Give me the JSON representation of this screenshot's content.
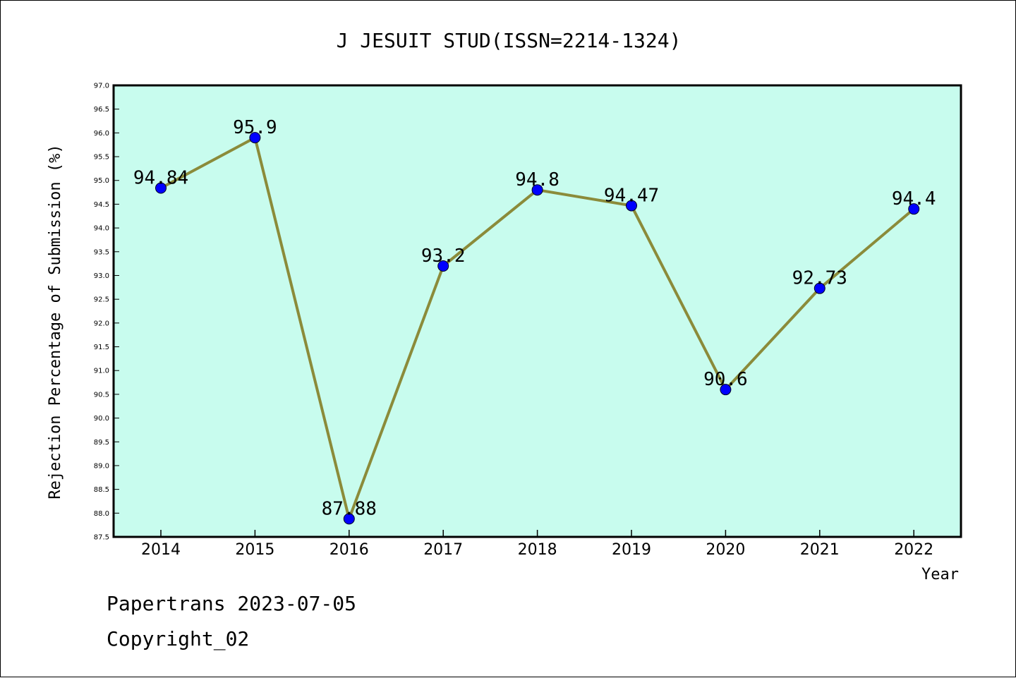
{
  "chart_data": {
    "type": "line",
    "title": "J JESUIT STUD(ISSN=2214-1324)",
    "xlabel": "Year",
    "ylabel": "Rejection Percentage of Submission (%)",
    "x": [
      "2014",
      "2015",
      "2016",
      "2017",
      "2018",
      "2019",
      "2020",
      "2021",
      "2022"
    ],
    "series": [
      {
        "values": [
          94.84,
          95.9,
          87.88,
          93.2,
          94.8,
          94.47,
          90.6,
          92.73,
          94.4
        ],
        "labels": [
          "94.84",
          "95.9",
          "87.88",
          "93.2",
          "94.8",
          "94.47",
          "90.6",
          "92.73",
          "94.4"
        ]
      }
    ],
    "ylim": [
      87.5,
      97.0
    ],
    "ytick_step": 0.5,
    "grid": false,
    "colors": {
      "plot_background": "#c8fcee",
      "line": "#8b8b3a",
      "marker": "#0000ff"
    }
  },
  "footer": {
    "line1": "Papertrans 2023-07-05",
    "line2": "Copyright_02"
  }
}
